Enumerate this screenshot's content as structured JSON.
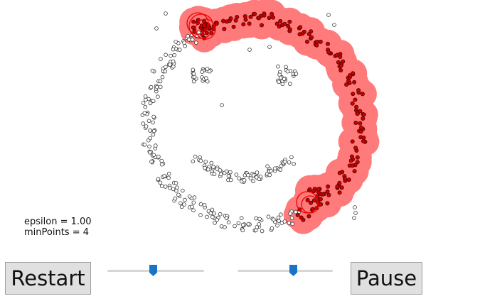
{
  "params": {
    "epsilon_text": "epsilon = 1.00",
    "minpoints_text": "minPoints = 4"
  },
  "buttons": {
    "restart_label": "Restart",
    "pause_label": "Pause"
  },
  "sliders": {
    "epsilon_fraction": 0.47,
    "minpoints_fraction": 0.58
  },
  "colors": {
    "coverage": "#ff7a7a",
    "clustered_point": "#cc0000",
    "unvisited_point_stroke": "#333333",
    "epsilon_circle": "#ee0000",
    "slider_thumb": "#1a73c8"
  },
  "icons": {
    "slider_thumb": "slider-thumb-icon"
  }
}
